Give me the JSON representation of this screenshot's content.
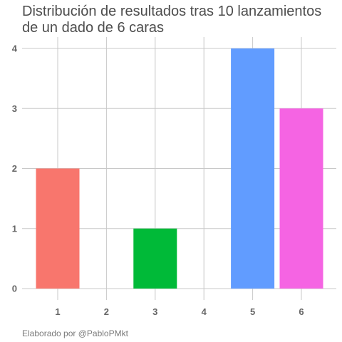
{
  "chart_data": {
    "type": "bar",
    "title_lines": [
      "Distribución de resultados tras 10 lanzamientos",
      "de un dado de 6 caras"
    ],
    "caption": "Elaborado por @PabloPMkt",
    "xlabel": "",
    "ylabel": "",
    "categories": [
      "1",
      "2",
      "3",
      "4",
      "5",
      "6"
    ],
    "values": [
      2,
      0,
      1,
      0,
      4,
      3
    ],
    "colors": [
      "#F8766D",
      "#B79F00",
      "#00BA38",
      "#00BFC4",
      "#619CFF",
      "#F564E3"
    ],
    "y_ticks": [
      0,
      1,
      2,
      3,
      4
    ],
    "ylim": [
      0,
      4
    ],
    "grid": true,
    "legend": "none"
  }
}
